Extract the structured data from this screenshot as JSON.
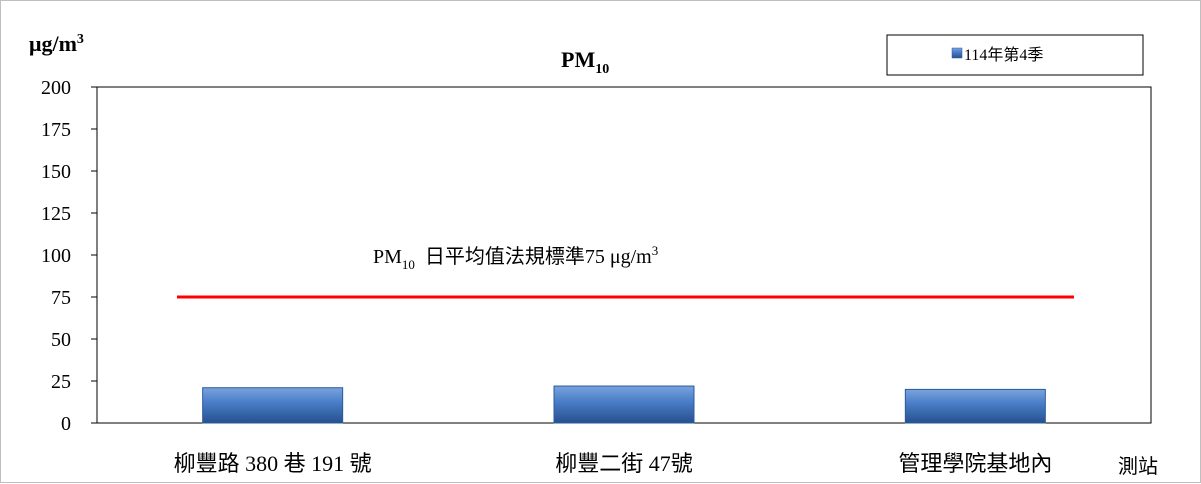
{
  "chart_data": {
    "type": "bar",
    "title": "PM",
    "title_subscript": "10",
    "ylabel": "μg/m",
    "ylabel_superscript": "3",
    "xlabel": "測站",
    "categories": [
      "柳豐路 380 巷 191 號",
      "柳豐二街 47號",
      "管理學院基地內"
    ],
    "series": [
      {
        "name": "114年第4季",
        "values": [
          21,
          22,
          20
        ],
        "color": "#3f6fb7"
      }
    ],
    "ylim": [
      0,
      200
    ],
    "yticks": [
      0,
      25,
      50,
      75,
      100,
      125,
      150,
      175,
      200
    ],
    "grid": false,
    "legend_position": "top-right",
    "reference_line": {
      "value": 75,
      "color": "#ff0000",
      "label_prefix": "PM",
      "label_subscript": "10",
      "label_text": "日平均值法規標準75 μg/m",
      "label_superscript": "3"
    }
  }
}
